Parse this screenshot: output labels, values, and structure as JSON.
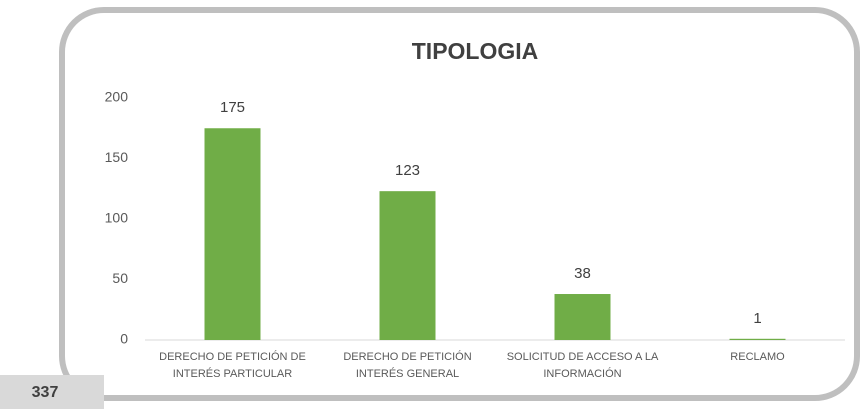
{
  "chart_data": {
    "type": "bar",
    "title": "TIPOLOGIA",
    "categories": [
      [
        "DERECHO DE PETICIÓN DE",
        "INTERÉS PARTICULAR"
      ],
      [
        "DERECHO DE PETICIÓN",
        "INTERÉS GENERAL"
      ],
      [
        "SOLICITUD DE ACCESO A LA",
        "INFORMACIÓN"
      ],
      [
        "RECLAMO"
      ]
    ],
    "values": [
      175,
      123,
      38,
      1
    ],
    "color": "#70ad47",
    "ylim": [
      0,
      200
    ],
    "yticks": [
      0,
      50,
      100,
      150,
      200
    ],
    "grid": false
  },
  "total": 337
}
